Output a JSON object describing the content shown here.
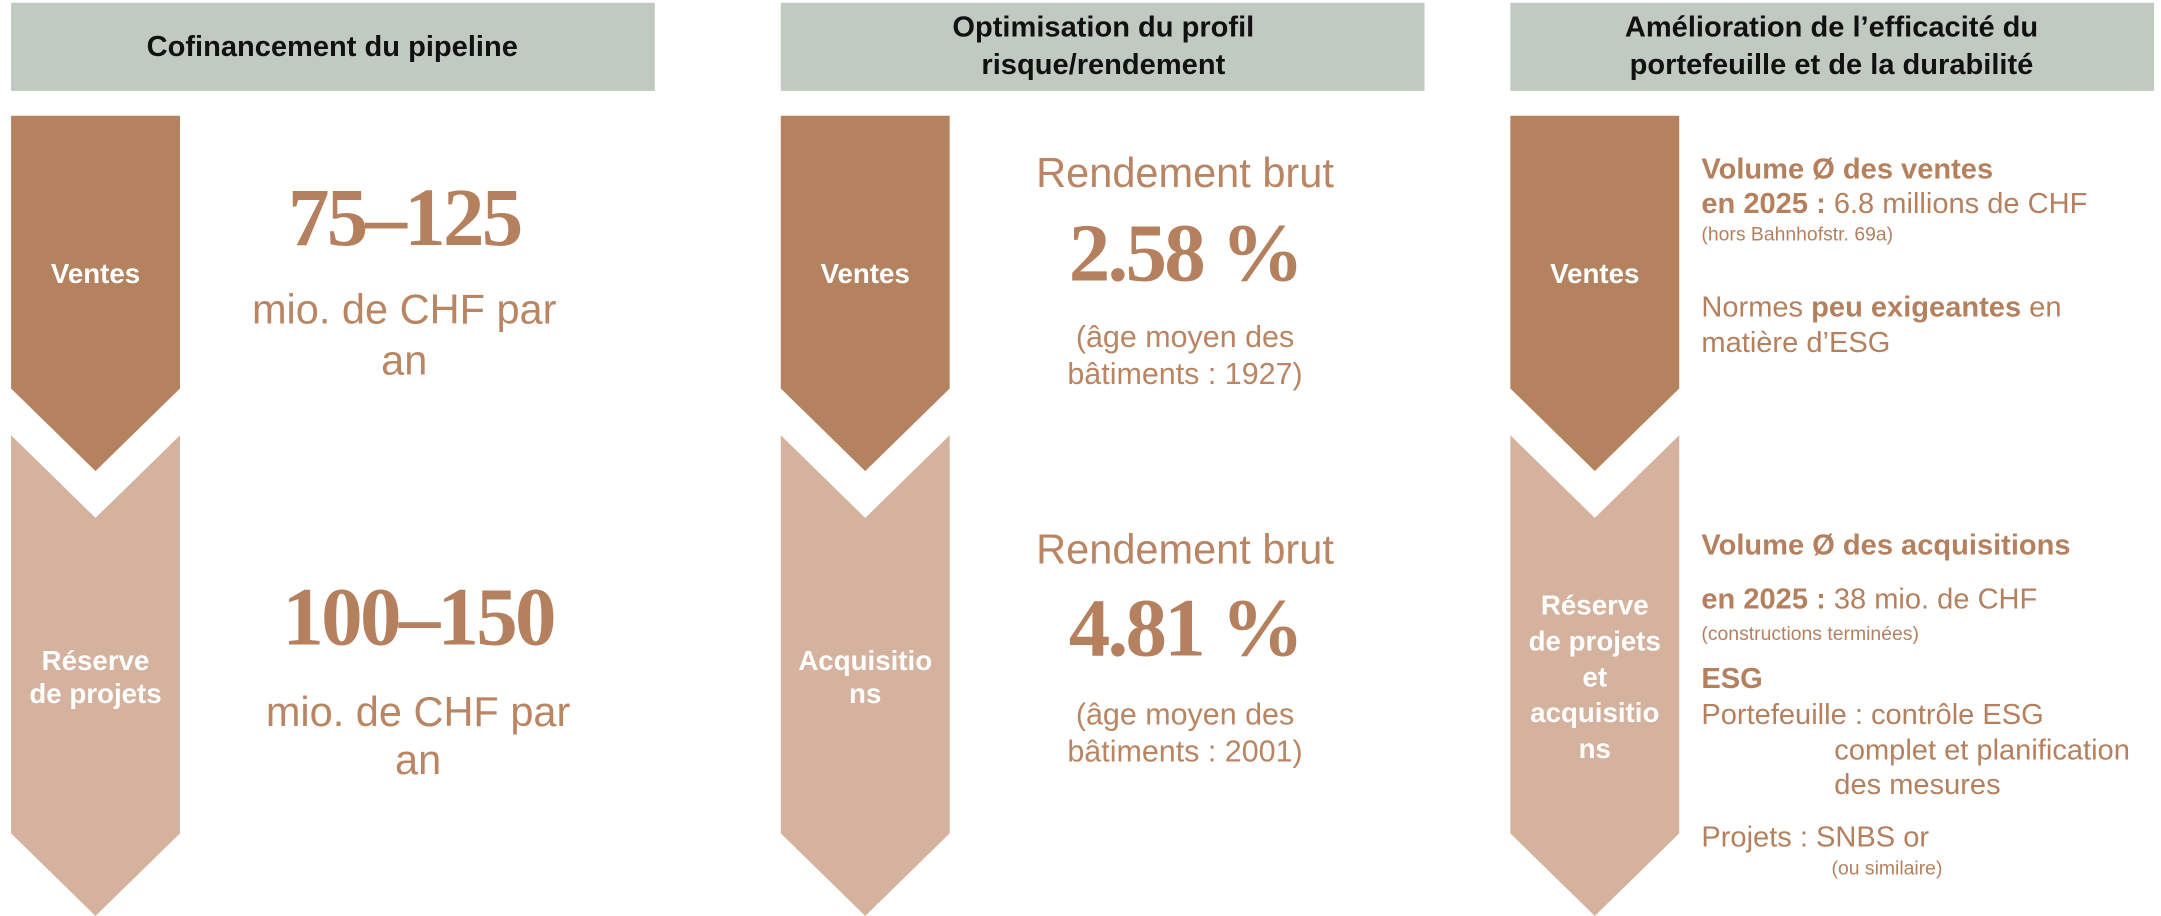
{
  "columns": [
    {
      "header": [
        "Cofinancement du pipeline"
      ],
      "top": {
        "label": [
          "Ventes"
        ],
        "figure": "75–125",
        "text": [
          "mio. de CHF par",
          "an"
        ]
      },
      "bottom": {
        "label": [
          "Réserve",
          "de projets"
        ],
        "figure": "100–150",
        "text": [
          "mio. de CHF par",
          "an"
        ]
      }
    },
    {
      "header": [
        "Optimisation du profil",
        "risque/rendement"
      ],
      "top": {
        "label": [
          "Ventes"
        ],
        "heading": "Rendement brut",
        "figure": "2.58 %",
        "text": [
          "(âge moyen des",
          "bâtiments : 1927)"
        ]
      },
      "bottom": {
        "label": [
          "Acquisitio",
          "ns"
        ],
        "heading": "Rendement brut",
        "figure": "4.81 %",
        "text": [
          "(âge moyen des",
          "bâtiments : 2001)"
        ]
      }
    },
    {
      "header": [
        "Amélioration de l’efficacité du",
        "portefeuille et de la durabilité"
      ],
      "top": {
        "label": [
          "Ventes"
        ],
        "lines": [
          [
            "Volume Ø des ventes"
          ],
          [
            "en 2025 :",
            " 6.8 millions de CHF"
          ],
          [
            "(hors Bahnhofstr. 69a)"
          ],
          [
            "Normes ",
            "peu exigeantes",
            " en"
          ],
          [
            "matière d’ESG"
          ]
        ]
      },
      "bottom": {
        "label": [
          "Réserve",
          "de projets",
          "et",
          "acquisitio",
          "ns"
        ],
        "lines": [
          [
            "Volume Ø des acquisitions"
          ],
          [
            "en 2025 :",
            " 38 mio. de CHF"
          ],
          [
            "(constructions terminées)"
          ],
          [
            "ESG"
          ],
          [
            "Portefeuille : contrôle ESG"
          ],
          [
            "complet et planification"
          ],
          [
            "des mesures"
          ],
          [
            "Projets : SNBS or"
          ],
          [
            "(ou similaire)"
          ]
        ]
      }
    }
  ]
}
